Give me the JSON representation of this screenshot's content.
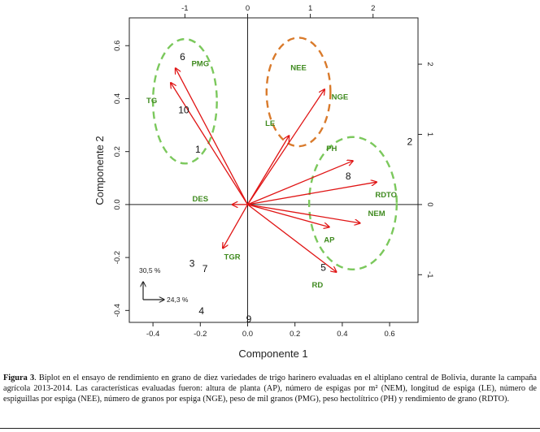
{
  "chart_data": {
    "type": "scatter",
    "subtype": "biplot",
    "xlabel": "Componente 1",
    "ylabel": "Componente 2",
    "xlim": [
      -0.5,
      0.72
    ],
    "ylim": [
      -0.445,
      0.705
    ],
    "x_ticks": [
      "-0.4",
      "-0.2",
      "0.0",
      "0.2",
      "0.4",
      "0.6"
    ],
    "y_ticks": [
      "-0.4",
      "-0.2",
      "0.0",
      "0.2",
      "0.4",
      "0.6"
    ],
    "top_ticks": [
      "-1",
      "0",
      "1",
      "2"
    ],
    "right_ticks": [
      "2",
      "1",
      "0",
      "-1"
    ],
    "origin": [
      0,
      0
    ],
    "vectors": [
      {
        "name": "NGE",
        "x": 0.325,
        "y": 0.435,
        "label_x": 0.39,
        "label_y": 0.405
      },
      {
        "name": "LE",
        "x": 0.175,
        "y": 0.26,
        "label_x": 0.095,
        "label_y": 0.305
      },
      {
        "name": "PH",
        "x": 0.445,
        "y": 0.165,
        "label_x": 0.355,
        "label_y": 0.21
      },
      {
        "name": "RDTO",
        "x": 0.545,
        "y": 0.085,
        "label_x": 0.585,
        "label_y": 0.035
      },
      {
        "name": "NEM",
        "x": 0.475,
        "y": -0.07,
        "label_x": 0.545,
        "label_y": -0.035
      },
      {
        "name": "AP",
        "x": 0.345,
        "y": -0.085,
        "label_x": 0.345,
        "label_y": -0.135
      },
      {
        "name": "RD",
        "x": 0.375,
        "y": -0.255,
        "label_x": 0.295,
        "label_y": -0.305
      },
      {
        "name": "TGR",
        "x": -0.105,
        "y": -0.165,
        "label_x": -0.065,
        "label_y": -0.2
      },
      {
        "name": "DES",
        "x": -0.065,
        "y": 0.0,
        "label_x": -0.2,
        "label_y": 0.02
      },
      {
        "name": "PMG",
        "x": -0.305,
        "y": 0.515,
        "label_x": -0.2,
        "label_y": 0.53
      },
      {
        "name": "TG",
        "x": -0.325,
        "y": 0.46,
        "label_x": -0.405,
        "label_y": 0.39
      }
    ],
    "orphan_labels": [
      {
        "name": "NEE",
        "x": 0.215,
        "y": 0.515
      }
    ],
    "observations": [
      {
        "id": "1",
        "x": -0.21,
        "y": 0.205
      },
      {
        "id": "2",
        "x": 0.685,
        "y": 0.235
      },
      {
        "id": "3",
        "x": -0.235,
        "y": -0.225
      },
      {
        "id": "4",
        "x": -0.195,
        "y": -0.405
      },
      {
        "id": "5",
        "x": 0.32,
        "y": -0.24
      },
      {
        "id": "6",
        "x": -0.275,
        "y": 0.555
      },
      {
        "id": "7",
        "x": -0.18,
        "y": -0.245
      },
      {
        "id": "8",
        "x": 0.425,
        "y": 0.105
      },
      {
        "id": "9",
        "x": 0.005,
        "y": -0.435
      },
      {
        "id": "10",
        "x": -0.27,
        "y": 0.355
      }
    ],
    "ellipses": [
      {
        "name": "group-pmg-tg",
        "color": "#7bc85c",
        "cx": -0.265,
        "cy": 0.39,
        "rx": 0.135,
        "ry": 0.235
      },
      {
        "name": "group-nee-nge",
        "color": "#d97a2b",
        "cx": 0.215,
        "cy": 0.425,
        "rx": 0.135,
        "ry": 0.205
      },
      {
        "name": "group-rdto-nem",
        "color": "#7bc85c",
        "cx": 0.445,
        "cy": 0.005,
        "rx": 0.185,
        "ry": 0.25
      }
    ],
    "inset_axes": {
      "vertical_label": "30,5 %",
      "horizontal_label": "24,3 %"
    },
    "colors": {
      "vector": "#e01414",
      "var_label": "#3f8a1f",
      "obs_label": "#111111",
      "axis": "#222222"
    }
  },
  "caption": {
    "figure_label": "Figura 3",
    "text": ". Biplot en el ensayo de rendimiento en grano de diez variedades de trigo harinero evaluadas en el altiplano central de Bolivia, durante la campaña agrícola 2013-2014. Las características evaluadas fueron: altura de planta (AP), número de espigas por m² (NEM), longitud de espiga (LE), número de espiguillas por espiga (NEE), número de granos por espiga (NGE), peso de mil granos (PMG), peso hectolítrico (PH) y rendimiento de grano (RDTO)."
  }
}
